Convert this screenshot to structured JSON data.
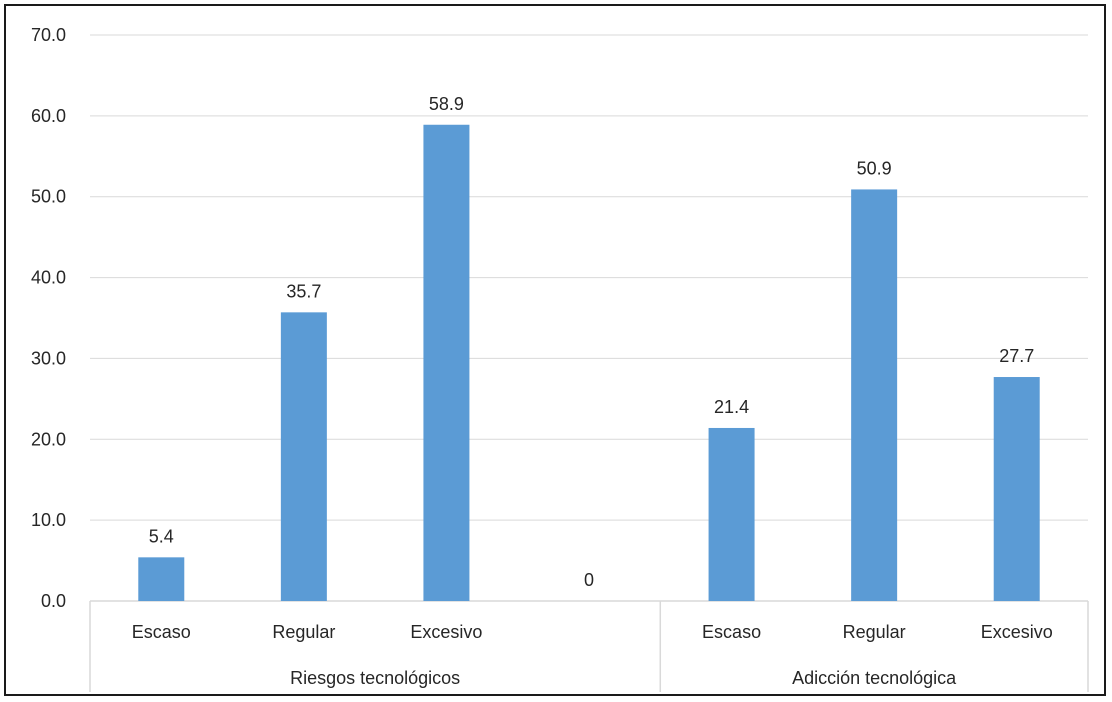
{
  "chart_data": {
    "type": "bar",
    "title": "",
    "xlabel": "",
    "ylabel": "",
    "ylim": [
      0,
      70
    ],
    "y_ticks": [
      "0.0",
      "10.0",
      "20.0",
      "30.0",
      "40.0",
      "50.0",
      "60.0",
      "70.0"
    ],
    "grid": true,
    "legend": "none",
    "bar_color": "#5b9bd5",
    "gridline_color": "#d9d9d9",
    "categories": [
      "Escaso",
      "Regular",
      "Excesivo",
      "",
      "Escaso",
      "Regular",
      "Excesivo"
    ],
    "values": [
      5.4,
      35.7,
      58.9,
      0,
      21.4,
      50.9,
      27.7
    ],
    "data_labels": [
      "5.4",
      "35.7",
      "58.9",
      "0",
      "21.4",
      "50.9",
      "27.7"
    ],
    "groups": [
      {
        "label": "Riesgos tecnológicos",
        "categories": [
          0,
          1,
          2,
          3
        ]
      },
      {
        "label": "Adicción tecnológica",
        "categories": [
          4,
          5,
          6
        ]
      }
    ]
  }
}
